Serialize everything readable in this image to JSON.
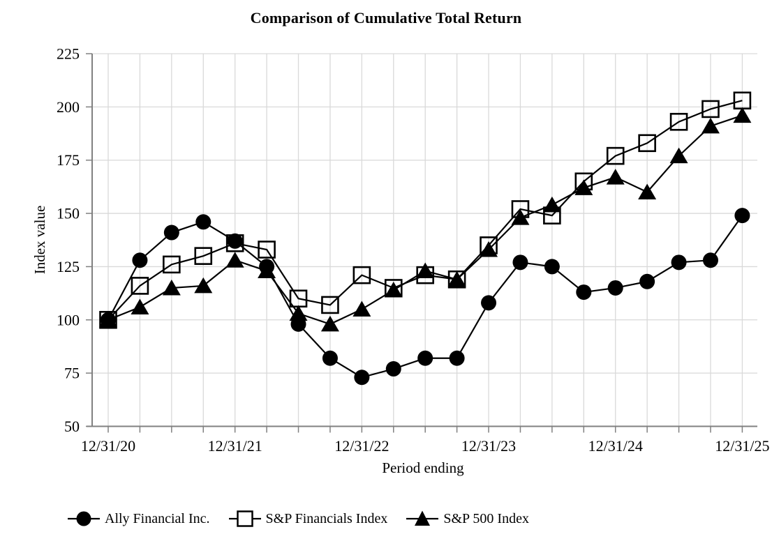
{
  "title": "Comparison of Cumulative Total Return",
  "colors": {
    "series": "#000000",
    "grid": "#d9d9d9",
    "axis": "#808080",
    "text": "#000000",
    "background": "#ffffff"
  },
  "chart_data": {
    "type": "line",
    "title": "Comparison of Cumulative Total Return",
    "x_axis": {
      "label": "Period ending",
      "tick_labels": [
        "12/31/20",
        "12/31/21",
        "12/31/22",
        "12/31/23",
        "12/31/24",
        "12/31/25"
      ],
      "quarters_per_label": 4,
      "points_are_quarterly": true
    },
    "y_axis": {
      "label": "Index value",
      "min": 50,
      "max": 225,
      "tick_step": 25,
      "tick_labels": [
        "225",
        "200",
        "175",
        "150",
        "125",
        "100",
        "75",
        "50"
      ]
    },
    "grid": true,
    "legend_position": "bottom",
    "series": [
      {
        "name": "Ally Financial Inc.",
        "marker": "filled-circle",
        "values": [
          100,
          128,
          141,
          146,
          137,
          125,
          98,
          82,
          73,
          77,
          82,
          82,
          108,
          127,
          125,
          113,
          115,
          118,
          127,
          128,
          149
        ]
      },
      {
        "name": "S&P Financials Index",
        "marker": "open-square",
        "values": [
          100,
          116,
          126,
          130,
          136,
          133,
          110,
          107,
          121,
          115,
          121,
          119,
          135,
          152,
          149,
          165,
          177,
          183,
          193,
          199,
          203
        ]
      },
      {
        "name": "S&P 500 Index",
        "marker": "filled-triangle",
        "values": [
          100,
          106,
          115,
          116,
          128,
          123,
          103,
          98,
          105,
          114,
          123,
          119,
          133,
          148,
          154,
          162,
          167,
          160,
          177,
          191,
          196
        ]
      }
    ]
  }
}
